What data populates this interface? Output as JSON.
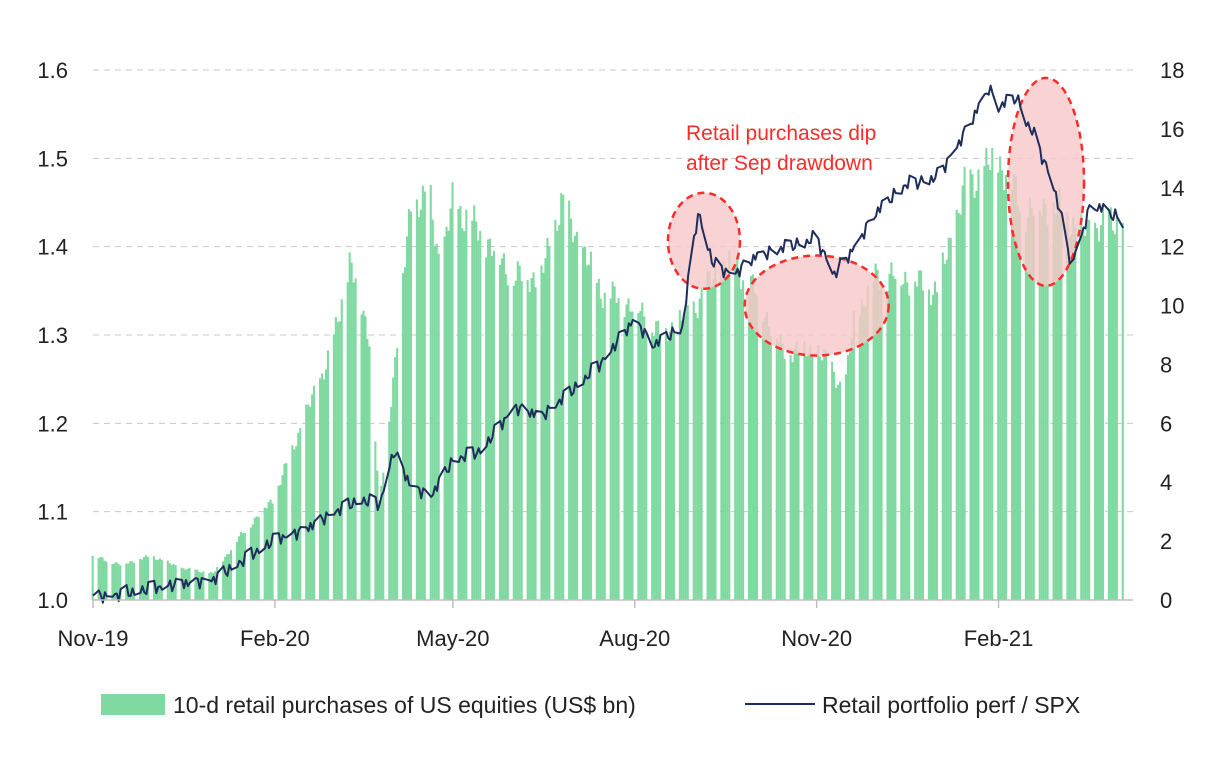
{
  "chart_data": {
    "type": "bar+line",
    "colors": {
      "bars": "#7fd9a0",
      "line": "#1f2d5c",
      "highlight": "#f7c8c8",
      "annotation": "#ff2a2a",
      "grid": "#c8c8c8"
    },
    "x_axis": {
      "type": "date",
      "range": [
        "2019-11-01",
        "2021-04-10"
      ],
      "tick_labels": [
        "Nov-19",
        "Feb-20",
        "May-20",
        "Aug-20",
        "Nov-20",
        "Feb-21"
      ],
      "tick_dates": [
        "2019-11-01",
        "2020-02-01",
        "2020-05-01",
        "2020-08-01",
        "2020-11-01",
        "2021-02-01"
      ]
    },
    "y_left": {
      "ylim": [
        1.0,
        1.6
      ],
      "ticks": [
        "1.0",
        "1.1",
        "1.2",
        "1.3",
        "1.4",
        "1.5",
        "1.6"
      ]
    },
    "y_right": {
      "ylim": [
        0,
        18
      ],
      "ticks": [
        "0",
        "2",
        "4",
        "6",
        "8",
        "10",
        "12",
        "14",
        "16",
        "18"
      ]
    },
    "grid": "horizontal dashed",
    "legend_position": "bottom",
    "series": [
      {
        "name": "10-d retail purchases of US equities (US$ bn)",
        "kind": "bar",
        "axis": "right",
        "points": [
          [
            "2019-11-01",
            1.5
          ],
          [
            "2019-11-15",
            1.2
          ],
          [
            "2019-12-01",
            1.5
          ],
          [
            "2019-12-15",
            1.1
          ],
          [
            "2020-01-01",
            0.9
          ],
          [
            "2020-01-15",
            2.2
          ],
          [
            "2020-02-01",
            3.5
          ],
          [
            "2020-02-15",
            6.0
          ],
          [
            "2020-03-01",
            8.5
          ],
          [
            "2020-03-10",
            11.5
          ],
          [
            "2020-03-20",
            9.0
          ],
          [
            "2020-03-25",
            3.2
          ],
          [
            "2020-04-01",
            7.5
          ],
          [
            "2020-04-10",
            13.5
          ],
          [
            "2020-04-20",
            13.5
          ],
          [
            "2020-04-25",
            11.2
          ],
          [
            "2020-05-01",
            13.5
          ],
          [
            "2020-05-15",
            12.5
          ],
          [
            "2020-06-01",
            11.0
          ],
          [
            "2020-06-15",
            11.0
          ],
          [
            "2020-06-25",
            13.5
          ],
          [
            "2020-07-05",
            12.0
          ],
          [
            "2020-07-15",
            10.5
          ],
          [
            "2020-08-01",
            10.0
          ],
          [
            "2020-08-15",
            9.0
          ],
          [
            "2020-09-01",
            10.0
          ],
          [
            "2020-09-10",
            11.0
          ],
          [
            "2020-09-20",
            11.5
          ],
          [
            "2020-10-01",
            10.5
          ],
          [
            "2020-10-15",
            8.5
          ],
          [
            "2020-11-01",
            8.5
          ],
          [
            "2020-11-10",
            7.8
          ],
          [
            "2020-11-15",
            6.9
          ],
          [
            "2020-11-20",
            9.5
          ],
          [
            "2020-12-01",
            11.0
          ],
          [
            "2020-12-15",
            11.0
          ],
          [
            "2021-01-01",
            10.5
          ],
          [
            "2021-01-15",
            14.0
          ],
          [
            "2021-02-01",
            15.0
          ],
          [
            "2021-02-15",
            13.2
          ],
          [
            "2021-03-01",
            13.5
          ],
          [
            "2021-03-15",
            12.5
          ],
          [
            "2021-04-05",
            13.0
          ]
        ]
      },
      {
        "name": "Retail portfolio perf / SPX",
        "kind": "line",
        "axis": "left",
        "points": [
          [
            "2019-11-01",
            1.005
          ],
          [
            "2019-11-15",
            1.008
          ],
          [
            "2019-12-01",
            1.015
          ],
          [
            "2019-12-15",
            1.02
          ],
          [
            "2020-01-01",
            1.025
          ],
          [
            "2020-01-15",
            1.045
          ],
          [
            "2020-02-01",
            1.07
          ],
          [
            "2020-02-15",
            1.08
          ],
          [
            "2020-03-01",
            1.1
          ],
          [
            "2020-03-15",
            1.115
          ],
          [
            "2020-03-25",
            1.11
          ],
          [
            "2020-04-01",
            1.17
          ],
          [
            "2020-04-10",
            1.13
          ],
          [
            "2020-04-20",
            1.12
          ],
          [
            "2020-05-01",
            1.16
          ],
          [
            "2020-05-15",
            1.17
          ],
          [
            "2020-06-01",
            1.22
          ],
          [
            "2020-06-15",
            1.21
          ],
          [
            "2020-07-01",
            1.24
          ],
          [
            "2020-07-15",
            1.27
          ],
          [
            "2020-08-01",
            1.32
          ],
          [
            "2020-08-10",
            1.29
          ],
          [
            "2020-08-25",
            1.31
          ],
          [
            "2020-09-02",
            1.44
          ],
          [
            "2020-09-10",
            1.38
          ],
          [
            "2020-09-20",
            1.37
          ],
          [
            "2020-10-01",
            1.39
          ],
          [
            "2020-10-15",
            1.4
          ],
          [
            "2020-11-01",
            1.41
          ],
          [
            "2020-11-10",
            1.37
          ],
          [
            "2020-11-20",
            1.4
          ],
          [
            "2020-12-01",
            1.44
          ],
          [
            "2020-12-15",
            1.47
          ],
          [
            "2021-01-01",
            1.48
          ],
          [
            "2021-01-15",
            1.53
          ],
          [
            "2021-01-27",
            1.58
          ],
          [
            "2021-02-01",
            1.56
          ],
          [
            "2021-02-10",
            1.57
          ],
          [
            "2021-02-20",
            1.52
          ],
          [
            "2021-03-01",
            1.47
          ],
          [
            "2021-03-10",
            1.38
          ],
          [
            "2021-03-20",
            1.45
          ],
          [
            "2021-04-05",
            1.43
          ]
        ]
      }
    ],
    "annotations": [
      {
        "text_lines": [
          "Retail purchases dip",
          "after Sep drawdown"
        ]
      }
    ],
    "highlights": [
      {
        "date": "2020-09-05",
        "value": 12.2,
        "axis": "right"
      },
      {
        "date": "2020-11-01",
        "value": 10.0,
        "axis": "right"
      },
      {
        "date": "2021-02-25",
        "value": 14.2,
        "axis": "right"
      }
    ]
  }
}
